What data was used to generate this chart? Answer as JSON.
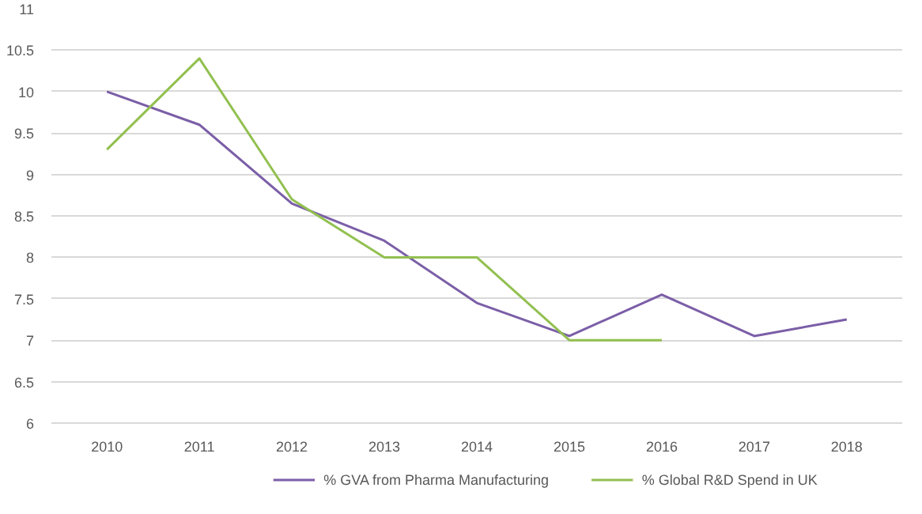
{
  "chart_data": {
    "type": "line",
    "categories": [
      "2010",
      "2011",
      "2012",
      "2013",
      "2014",
      "2015",
      "2016",
      "2017",
      "2018"
    ],
    "series": [
      {
        "name": "% GVA from Pharma Manufacturing",
        "color": "#7b5ea7",
        "values": [
          10,
          9.6,
          8.65,
          8.2,
          7.45,
          7.05,
          7.55,
          7.05,
          7.25
        ]
      },
      {
        "name": "% Global R&D Spend in UK",
        "color": "#92c050",
        "values": [
          9.3,
          10.4,
          8.7,
          8,
          8,
          7,
          7,
          null,
          null
        ]
      }
    ],
    "ylim": [
      6,
      11
    ],
    "yticks": [
      6,
      6.5,
      7,
      7.5,
      8,
      8.5,
      9,
      9.5,
      10,
      10.5,
      11
    ],
    "grid": "y",
    "legend": "bottom",
    "marker": "none",
    "line_style": "solid"
  }
}
